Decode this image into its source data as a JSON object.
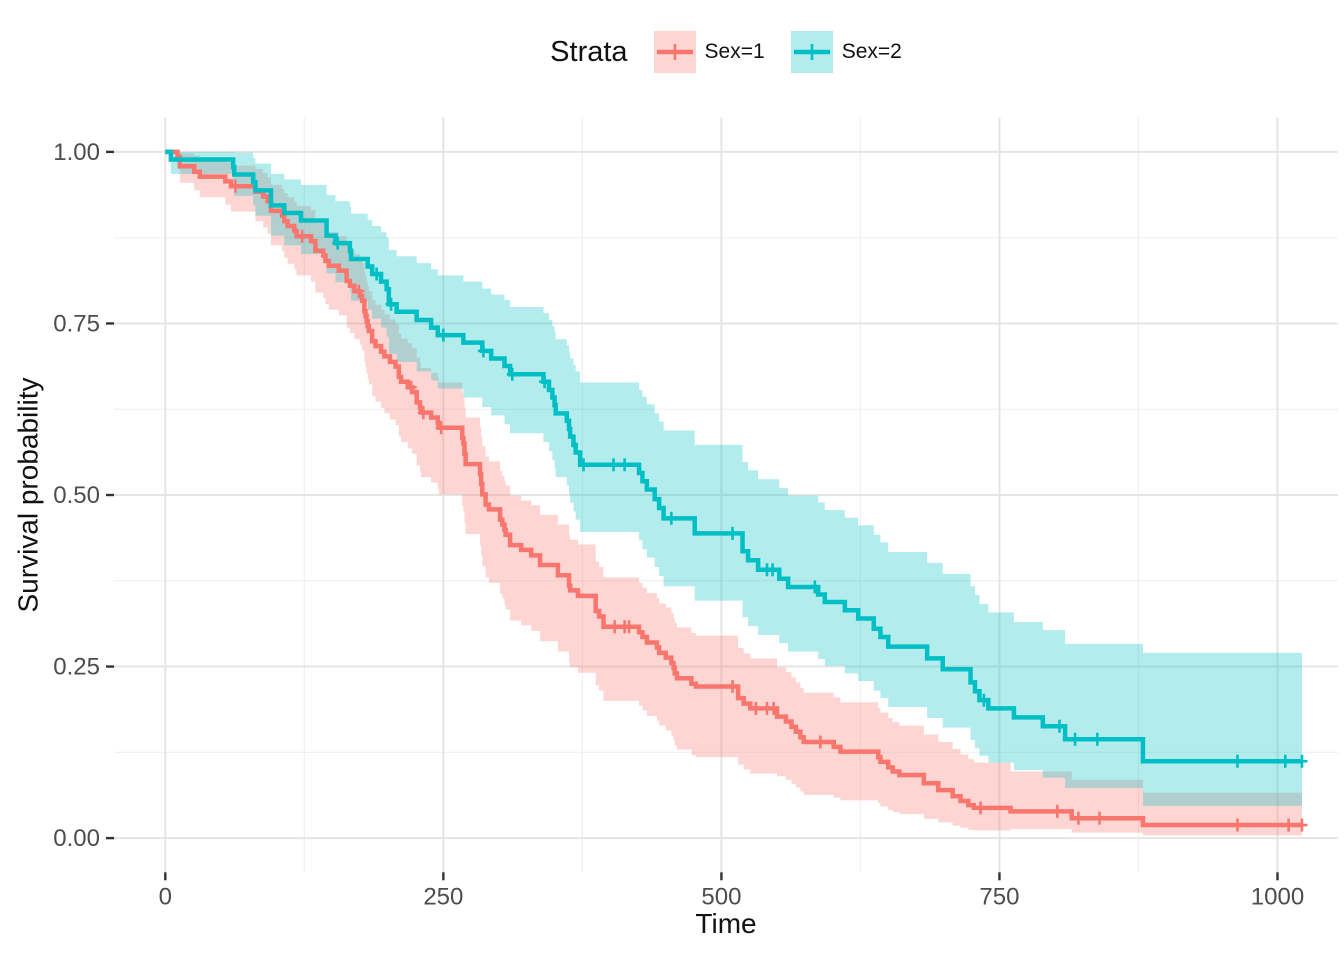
{
  "legend": {
    "title": "Strata",
    "items": [
      {
        "label": "Sex=1"
      },
      {
        "label": "Sex=2"
      }
    ]
  },
  "chart_data": {
    "type": "line",
    "subtype": "kaplan-meier-survival-step",
    "title": "",
    "xlabel": "Time",
    "ylabel": "Survival probability",
    "legend_title": "Strata",
    "legend_position": "top",
    "grid": true,
    "xlim": [
      -46,
      1055
    ],
    "ylim": [
      -0.05,
      1.05
    ],
    "x_tick_values": [
      0,
      250,
      500,
      750,
      1000
    ],
    "x_tick_labels": [
      "0",
      "250",
      "500",
      "750",
      "1000"
    ],
    "x_minor_ticks": [
      125,
      375,
      625,
      875
    ],
    "y_tick_values": [
      0,
      0.25,
      0.5,
      0.75,
      1.0
    ],
    "y_tick_labels": [
      "0.00",
      "0.25",
      "0.50",
      "0.75",
      "1.00"
    ],
    "y_minor_ticks": [
      0.125,
      0.375,
      0.625,
      0.875
    ],
    "tick_label_color": "#4d4d4d",
    "axis_tick_color": "#333333",
    "grid_major_color": "#e5e5e5",
    "grid_minor_color": "#f0f0f0",
    "band_opacity": 0.3,
    "series": [
      {
        "name": "Sex=1",
        "color": "#F8766D",
        "band_fill": "rgba(248,118,109,0.3)",
        "points": [
          [
            0,
            1,
            1,
            1
          ],
          [
            11,
            0.993,
            0.975,
            1
          ],
          [
            13,
            0.979,
            0.955,
            0.998
          ],
          [
            26,
            0.971,
            0.944,
            0.995
          ],
          [
            31,
            0.964,
            0.934,
            0.99
          ],
          [
            54,
            0.957,
            0.923,
            0.985
          ],
          [
            59,
            0.95,
            0.913,
            0.98
          ],
          [
            81,
            0.942,
            0.899,
            0.975
          ],
          [
            88,
            0.935,
            0.89,
            0.969
          ],
          [
            92,
            0.928,
            0.881,
            0.963
          ],
          [
            95,
            0.914,
            0.864,
            0.952
          ],
          [
            105,
            0.907,
            0.855,
            0.946
          ],
          [
            107,
            0.899,
            0.846,
            0.94
          ],
          [
            110,
            0.892,
            0.837,
            0.934
          ],
          [
            116,
            0.885,
            0.829,
            0.928
          ],
          [
            118,
            0.877,
            0.82,
            0.921
          ],
          [
            131,
            0.87,
            0.811,
            0.915
          ],
          [
            135,
            0.856,
            0.795,
            0.903
          ],
          [
            142,
            0.849,
            0.787,
            0.897
          ],
          [
            144,
            0.841,
            0.778,
            0.89
          ],
          [
            147,
            0.834,
            0.77,
            0.883
          ],
          [
            156,
            0.827,
            0.762,
            0.877
          ],
          [
            163,
            0.812,
            0.744,
            0.864
          ],
          [
            166,
            0.805,
            0.736,
            0.858
          ],
          [
            170,
            0.797,
            0.727,
            0.851
          ],
          [
            175,
            0.79,
            0.719,
            0.844
          ],
          [
            177,
            0.783,
            0.711,
            0.838
          ],
          [
            179,
            0.768,
            0.694,
            0.824
          ],
          [
            180,
            0.761,
            0.686,
            0.818
          ],
          [
            181,
            0.753,
            0.677,
            0.811
          ],
          [
            182,
            0.746,
            0.669,
            0.804
          ],
          [
            183,
            0.739,
            0.661,
            0.797
          ],
          [
            186,
            0.724,
            0.644,
            0.784
          ],
          [
            189,
            0.717,
            0.636,
            0.777
          ],
          [
            194,
            0.709,
            0.627,
            0.77
          ],
          [
            197,
            0.702,
            0.619,
            0.763
          ],
          [
            202,
            0.694,
            0.61,
            0.756
          ],
          [
            207,
            0.687,
            0.602,
            0.749
          ],
          [
            210,
            0.672,
            0.585,
            0.735
          ],
          [
            212,
            0.665,
            0.577,
            0.728
          ],
          [
            218,
            0.657,
            0.568,
            0.721
          ],
          [
            222,
            0.65,
            0.56,
            0.714
          ],
          [
            226,
            0.635,
            0.543,
            0.7
          ],
          [
            229,
            0.627,
            0.534,
            0.692
          ],
          [
            230,
            0.62,
            0.526,
            0.685
          ],
          [
            239,
            0.613,
            0.518,
            0.678
          ],
          [
            245,
            0.605,
            0.509,
            0.671
          ],
          [
            246,
            0.598,
            0.501,
            0.664
          ],
          [
            267,
            0.583,
            0.484,
            0.649
          ],
          [
            268,
            0.575,
            0.476,
            0.642
          ],
          [
            269,
            0.56,
            0.459,
            0.628
          ],
          [
            270,
            0.545,
            0.443,
            0.613
          ],
          [
            283,
            0.53,
            0.427,
            0.599
          ],
          [
            284,
            0.516,
            0.412,
            0.585
          ],
          [
            285,
            0.501,
            0.396,
            0.571
          ],
          [
            288,
            0.486,
            0.38,
            0.556
          ],
          [
            291,
            0.479,
            0.372,
            0.549
          ],
          [
            301,
            0.464,
            0.356,
            0.535
          ],
          [
            303,
            0.457,
            0.349,
            0.528
          ],
          [
            305,
            0.449,
            0.34,
            0.52
          ],
          [
            306,
            0.442,
            0.333,
            0.514
          ],
          [
            310,
            0.427,
            0.317,
            0.499
          ],
          [
            320,
            0.42,
            0.31,
            0.492
          ],
          [
            329,
            0.412,
            0.302,
            0.485
          ],
          [
            337,
            0.398,
            0.287,
            0.471
          ],
          [
            353,
            0.383,
            0.272,
            0.457
          ],
          [
            363,
            0.368,
            0.256,
            0.442
          ],
          [
            364,
            0.361,
            0.249,
            0.435
          ],
          [
            371,
            0.353,
            0.241,
            0.428
          ],
          [
            387,
            0.331,
            0.223,
            0.403
          ],
          [
            390,
            0.323,
            0.215,
            0.395
          ],
          [
            394,
            0.308,
            0.2,
            0.38
          ],
          [
            426,
            0.3,
            0.193,
            0.372
          ],
          [
            429,
            0.293,
            0.186,
            0.365
          ],
          [
            433,
            0.285,
            0.178,
            0.357
          ],
          [
            442,
            0.278,
            0.171,
            0.35
          ],
          [
            444,
            0.27,
            0.164,
            0.342
          ],
          [
            450,
            0.263,
            0.157,
            0.336
          ],
          [
            455,
            0.255,
            0.149,
            0.328
          ],
          [
            457,
            0.248,
            0.143,
            0.321
          ],
          [
            458,
            0.24,
            0.135,
            0.314
          ],
          [
            460,
            0.233,
            0.129,
            0.307
          ],
          [
            473,
            0.225,
            0.121,
            0.299
          ],
          [
            477,
            0.221,
            0.118,
            0.295
          ],
          [
            515,
            0.204,
            0.107,
            0.277
          ],
          [
            520,
            0.196,
            0.1,
            0.269
          ],
          [
            526,
            0.189,
            0.094,
            0.262
          ],
          [
            550,
            0.177,
            0.09,
            0.249
          ],
          [
            558,
            0.17,
            0.085,
            0.242
          ],
          [
            563,
            0.162,
            0.079,
            0.234
          ],
          [
            567,
            0.155,
            0.074,
            0.227
          ],
          [
            571,
            0.147,
            0.068,
            0.219
          ],
          [
            574,
            0.14,
            0.063,
            0.212
          ],
          [
            601,
            0.133,
            0.059,
            0.205
          ],
          [
            607,
            0.126,
            0.055,
            0.198
          ],
          [
            641,
            0.118,
            0.051,
            0.19
          ],
          [
            643,
            0.111,
            0.046,
            0.183
          ],
          [
            650,
            0.103,
            0.041,
            0.175
          ],
          [
            654,
            0.097,
            0.038,
            0.169
          ],
          [
            660,
            0.092,
            0.035,
            0.164
          ],
          [
            682,
            0.08,
            0.028,
            0.151
          ],
          [
            695,
            0.07,
            0.023,
            0.14
          ],
          [
            708,
            0.061,
            0.018,
            0.13
          ],
          [
            715,
            0.054,
            0.015,
            0.122
          ],
          [
            722,
            0.048,
            0.012,
            0.115
          ],
          [
            727,
            0.044,
            0.011,
            0.11
          ],
          [
            760,
            0.039,
            0.013,
            0.097
          ],
          [
            815,
            0.029,
            0.008,
            0.085
          ],
          [
            879,
            0.019,
            0.004,
            0.066
          ],
          [
            1022,
            0.019,
            0.004,
            0.066
          ]
        ],
        "censor_times": [
          63,
          123,
          174,
          221,
          232,
          248,
          404,
          413,
          417,
          510,
          531,
          541,
          547,
          589,
          733,
          802,
          821,
          840,
          964,
          1010,
          1022
        ]
      },
      {
        "name": "Sex=2",
        "color": "#00BFC4",
        "band_fill": "rgba(0,191,196,0.3)",
        "points": [
          [
            0,
            1,
            1,
            1
          ],
          [
            5,
            0.989,
            0.968,
            1
          ],
          [
            61,
            0.978,
            0.951,
            1
          ],
          [
            62,
            0.967,
            0.936,
            0.999
          ],
          [
            79,
            0.956,
            0.922,
            0.991
          ],
          [
            81,
            0.944,
            0.907,
            0.983
          ],
          [
            95,
            0.922,
            0.878,
            0.968
          ],
          [
            107,
            0.911,
            0.864,
            0.96
          ],
          [
            122,
            0.9,
            0.851,
            0.952
          ],
          [
            145,
            0.878,
            0.823,
            0.937
          ],
          [
            153,
            0.867,
            0.81,
            0.928
          ],
          [
            166,
            0.856,
            0.797,
            0.92
          ],
          [
            167,
            0.844,
            0.783,
            0.91
          ],
          [
            182,
            0.833,
            0.77,
            0.901
          ],
          [
            186,
            0.822,
            0.757,
            0.892
          ],
          [
            194,
            0.811,
            0.744,
            0.883
          ],
          [
            199,
            0.8,
            0.731,
            0.875
          ],
          [
            201,
            0.778,
            0.706,
            0.857
          ],
          [
            208,
            0.767,
            0.694,
            0.848
          ],
          [
            226,
            0.755,
            0.68,
            0.838
          ],
          [
            239,
            0.744,
            0.667,
            0.829
          ],
          [
            245,
            0.733,
            0.655,
            0.82
          ],
          [
            268,
            0.722,
            0.642,
            0.811
          ],
          [
            285,
            0.71,
            0.628,
            0.801
          ],
          [
            293,
            0.699,
            0.616,
            0.792
          ],
          [
            305,
            0.688,
            0.603,
            0.784
          ],
          [
            310,
            0.676,
            0.59,
            0.774
          ],
          [
            340,
            0.665,
            0.577,
            0.765
          ],
          [
            345,
            0.653,
            0.564,
            0.755
          ],
          [
            348,
            0.642,
            0.551,
            0.746
          ],
          [
            350,
            0.631,
            0.539,
            0.737
          ],
          [
            351,
            0.619,
            0.526,
            0.727
          ],
          [
            361,
            0.608,
            0.514,
            0.718
          ],
          [
            363,
            0.596,
            0.501,
            0.708
          ],
          [
            364,
            0.585,
            0.489,
            0.699
          ],
          [
            367,
            0.573,
            0.476,
            0.689
          ],
          [
            369,
            0.562,
            0.464,
            0.68
          ],
          [
            373,
            0.544,
            0.446,
            0.664
          ],
          [
            426,
            0.532,
            0.434,
            0.653
          ],
          [
            429,
            0.52,
            0.421,
            0.643
          ],
          [
            433,
            0.508,
            0.409,
            0.632
          ],
          [
            440,
            0.494,
            0.395,
            0.619
          ],
          [
            444,
            0.481,
            0.382,
            0.607
          ],
          [
            448,
            0.466,
            0.367,
            0.594
          ],
          [
            476,
            0.444,
            0.346,
            0.573
          ],
          [
            519,
            0.418,
            0.322,
            0.548
          ],
          [
            524,
            0.405,
            0.309,
            0.536
          ],
          [
            533,
            0.391,
            0.296,
            0.523
          ],
          [
            552,
            0.378,
            0.284,
            0.51
          ],
          [
            560,
            0.366,
            0.272,
            0.499
          ],
          [
            587,
            0.355,
            0.261,
            0.489
          ],
          [
            593,
            0.344,
            0.251,
            0.478
          ],
          [
            611,
            0.332,
            0.24,
            0.467
          ],
          [
            623,
            0.32,
            0.229,
            0.456
          ],
          [
            637,
            0.305,
            0.215,
            0.442
          ],
          [
            643,
            0.293,
            0.204,
            0.431
          ],
          [
            650,
            0.279,
            0.191,
            0.417
          ],
          [
            685,
            0.262,
            0.175,
            0.401
          ],
          [
            699,
            0.246,
            0.161,
            0.385
          ],
          [
            724,
            0.227,
            0.143,
            0.367
          ],
          [
            728,
            0.214,
            0.131,
            0.354
          ],
          [
            732,
            0.201,
            0.12,
            0.341
          ],
          [
            740,
            0.189,
            0.11,
            0.329
          ],
          [
            763,
            0.176,
            0.099,
            0.315
          ],
          [
            789,
            0.163,
            0.088,
            0.303
          ],
          [
            809,
            0.144,
            0.073,
            0.283
          ],
          [
            879,
            0.112,
            0.047,
            0.27
          ],
          [
            1022,
            0.112,
            0.047,
            0.27
          ]
        ],
        "censor_times": [
          155,
          190,
          203,
          250,
          286,
          312,
          341,
          376,
          403,
          413,
          455,
          510,
          541,
          546,
          584,
          736,
          804,
          818,
          838,
          964,
          1007,
          1022
        ]
      }
    ]
  }
}
